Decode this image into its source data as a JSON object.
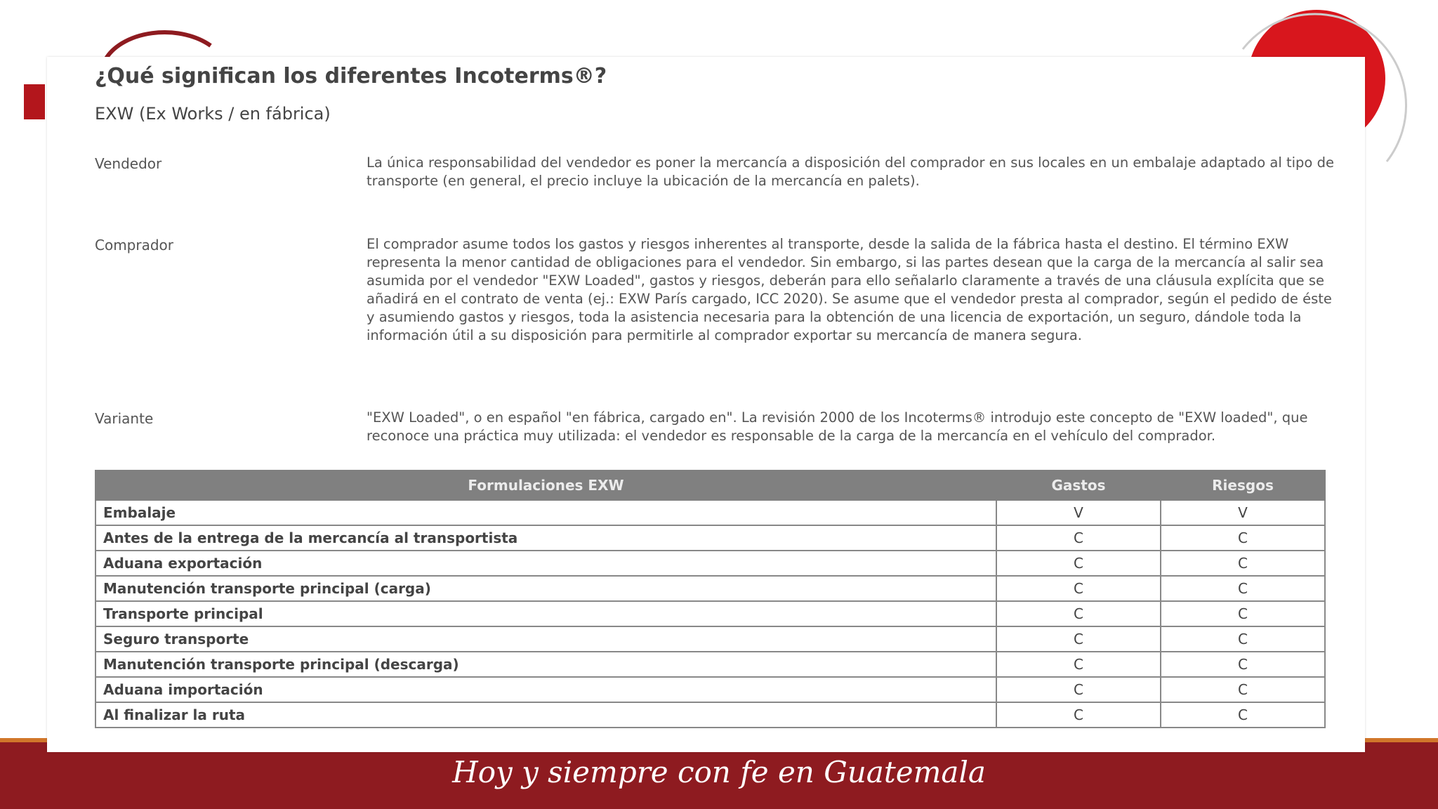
{
  "heading": {
    "title": "¿Qué significan los diferentes Incoterms®?",
    "subtitle": "EXW (Ex Works / en fábrica)"
  },
  "definitions": [
    {
      "term": "Vendedor",
      "text": "La única responsabilidad del vendedor es poner la mercancía a disposición del comprador en sus locales en un embalaje adaptado al tipo de transporte (en general, el precio incluye la ubicación de la mercancía en palets)."
    },
    {
      "term": "Comprador",
      "text": "El comprador asume todos los gastos y riesgos inherentes al transporte, desde la salida de la fábrica hasta el destino. El término EXW representa la menor cantidad de obligaciones para el vendedor. Sin embargo, si las partes desean que la carga de la mercancía al salir sea asumida por el vendedor \"EXW Loaded\", gastos y riesgos, deberán para ello señalarlo claramente a través de una cláusula explícita que se añadirá en el contrato de venta (ej.: EXW París cargado, ICC 2020). Se asume que el vendedor presta al comprador, según el pedido de éste y asumiendo gastos y riesgos, toda la asistencia necesaria para la obtención de una licencia de exportación, un seguro, dándole toda la información útil a su disposición para permitirle al comprador exportar su mercancía de manera segura."
    },
    {
      "term": "Variante",
      "text": "\"EXW Loaded\", o en español \"en fábrica, cargado en\". La revisión 2000 de los Incoterms® introdujo este concepto de \"EXW loaded\", que reconoce una práctica muy utilizada: el vendedor es responsable de la carga de la mercancía en el vehículo del comprador."
    }
  ],
  "table": {
    "header": [
      "Formulaciones EXW",
      "Gastos",
      "Riesgos"
    ],
    "rows": [
      [
        "Embalaje",
        "V",
        "V"
      ],
      [
        "Antes de la entrega de la mercancía al transportista",
        "C",
        "C"
      ],
      [
        "Aduana exportación",
        "C",
        "C"
      ],
      [
        "Manutención transporte principal (carga)",
        "C",
        "C"
      ],
      [
        "Transporte principal",
        "C",
        "C"
      ],
      [
        "Seguro transporte",
        "C",
        "C"
      ],
      [
        "Manutención transporte principal (descarga)",
        "C",
        "C"
      ],
      [
        "Aduana importación",
        "C",
        "C"
      ],
      [
        "Al finalizar la ruta",
        "C",
        "C"
      ]
    ]
  },
  "footer": {
    "slogan": "Hoy y siempre con fe en Guatemala"
  }
}
